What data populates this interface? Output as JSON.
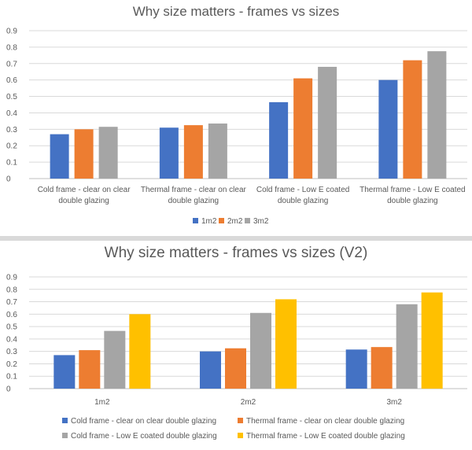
{
  "chart_data": [
    {
      "type": "bar",
      "title": "Why size matters - frames vs sizes",
      "categories": [
        [
          "Cold frame - clear on clear",
          "double glazing"
        ],
        [
          "Thermal frame - clear on clear",
          "double glazing"
        ],
        [
          "Cold frame - Low E coated",
          "double glazing"
        ],
        [
          "Thermal frame - Low E coated",
          "double glazing"
        ]
      ],
      "series": [
        {
          "name": "1m2",
          "color": "#4472c4",
          "values": [
            0.27,
            0.31,
            0.465,
            0.6
          ]
        },
        {
          "name": "2m2",
          "color": "#ed7d31",
          "values": [
            0.3,
            0.325,
            0.61,
            0.72
          ]
        },
        {
          "name": "3m2",
          "color": "#a5a5a5",
          "values": [
            0.315,
            0.335,
            0.68,
            0.775
          ]
        }
      ],
      "ylim": [
        0,
        0.9
      ],
      "yticks": [
        "0",
        "0.1",
        "0.2",
        "0.3",
        "0.4",
        "0.5",
        "0.6",
        "0.7",
        "0.8",
        "0.9"
      ],
      "grid": true,
      "legend_position": "bottom"
    },
    {
      "type": "bar",
      "title": "Why size matters - frames vs sizes (V2)",
      "categories": [
        [
          "1m2"
        ],
        [
          "2m2"
        ],
        [
          "3m2"
        ]
      ],
      "series": [
        {
          "name": "Cold frame - clear on clear double glazing",
          "color": "#4472c4",
          "values": [
            0.27,
            0.3,
            0.315
          ]
        },
        {
          "name": "Thermal frame - clear on clear double glazing",
          "color": "#ed7d31",
          "values": [
            0.31,
            0.325,
            0.335
          ]
        },
        {
          "name": "Cold frame - Low E coated double glazing",
          "color": "#a5a5a5",
          "values": [
            0.465,
            0.61,
            0.68
          ]
        },
        {
          "name": "Thermal frame - Low E coated double glazing",
          "color": "#ffc000",
          "values": [
            0.6,
            0.72,
            0.775
          ]
        }
      ],
      "ylim": [
        0,
        0.9
      ],
      "yticks": [
        "0",
        "0.1",
        "0.2",
        "0.3",
        "0.4",
        "0.5",
        "0.6",
        "0.7",
        "0.8",
        "0.9"
      ],
      "grid": true,
      "legend_position": "bottom"
    }
  ]
}
